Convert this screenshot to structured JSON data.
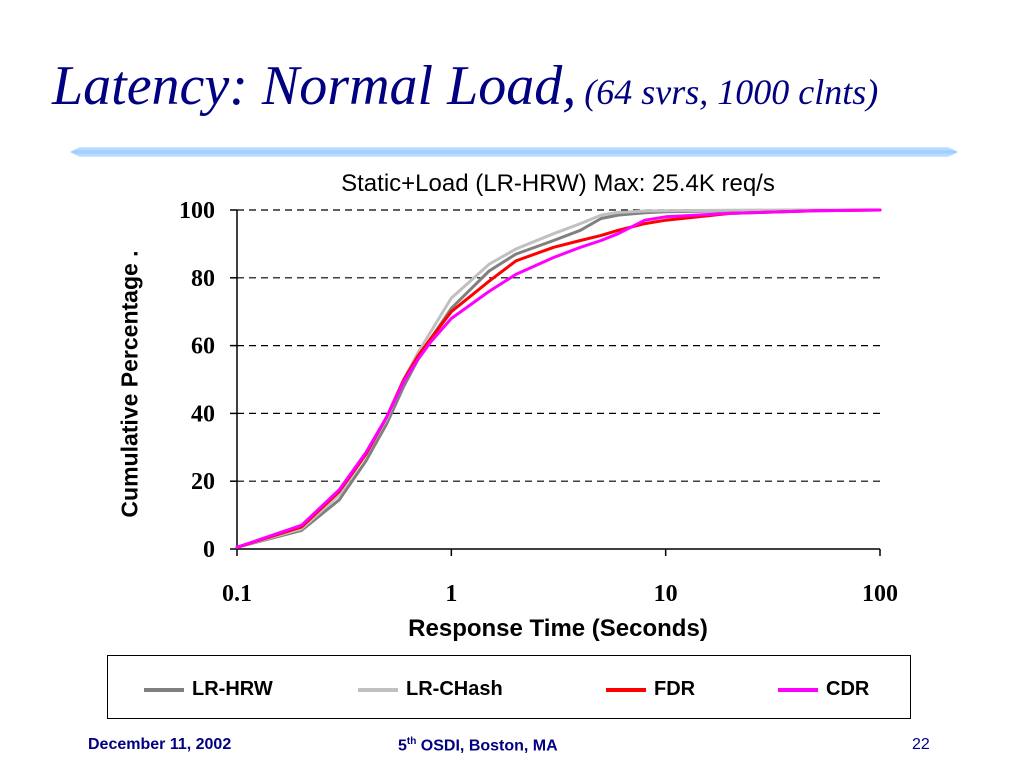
{
  "slide": {
    "title_main": "Latency: Normal Load,",
    "title_sub": "(64 svrs, 1000 clnts)"
  },
  "footer": {
    "date": "December 11, 2002",
    "conf_prefix": "5",
    "conf_sup": "th",
    "conf_rest": " OSDI, Boston, MA",
    "page": "22"
  },
  "colors": {
    "title": "#000080",
    "rule": "#99ccff"
  },
  "chart_data": {
    "type": "line",
    "title": "Static+Load (LR-HRW) Max: 25.4K req/s",
    "xlabel": "Response Time (Seconds)",
    "ylabel": "Cumulative Percentage .",
    "x_scale": "log",
    "xlim": [
      0.1,
      100
    ],
    "ylim": [
      0,
      100
    ],
    "x_ticks": [
      0.1,
      1,
      10,
      100
    ],
    "x_tick_labels": [
      "0.1",
      "1",
      "10",
      "100"
    ],
    "y_ticks": [
      0,
      20,
      40,
      60,
      80,
      100
    ],
    "y_tick_labels": [
      "0",
      "20",
      "40",
      "60",
      "80",
      "100"
    ],
    "grid": "horizontal-dashed",
    "legend_position": "bottom",
    "series": [
      {
        "name": "LR-HRW",
        "color": "#808080",
        "x": [
          0.1,
          0.2,
          0.3,
          0.4,
          0.5,
          0.6,
          0.7,
          0.8,
          1,
          1.5,
          2,
          3,
          4,
          5,
          6,
          8,
          10,
          20,
          50,
          100
        ],
        "y": [
          0.5,
          5.5,
          14.5,
          26,
          37,
          48,
          56,
          62,
          71,
          82,
          87,
          91,
          94,
          97.5,
          98.5,
          99.2,
          99.5,
          99.8,
          100,
          100
        ]
      },
      {
        "name": "LR-CHash",
        "color": "#c0c0c0",
        "x": [
          0.1,
          0.2,
          0.3,
          0.4,
          0.5,
          0.6,
          0.7,
          0.8,
          1,
          1.5,
          2,
          3,
          4,
          5,
          6,
          8,
          10,
          20,
          50,
          100
        ],
        "y": [
          0.5,
          6,
          16,
          28,
          38.5,
          50,
          58,
          64,
          74,
          84,
          88.5,
          93,
          96,
          98.5,
          99.3,
          99.7,
          99.8,
          99.9,
          100,
          100
        ]
      },
      {
        "name": "FDR",
        "color": "#ff0000",
        "x": [
          0.1,
          0.2,
          0.3,
          0.4,
          0.5,
          0.6,
          0.7,
          0.8,
          1,
          1.5,
          2,
          3,
          4,
          5,
          6,
          8,
          10,
          20,
          50,
          100
        ],
        "y": [
          0.5,
          6.5,
          17,
          28,
          39,
          50,
          57,
          62,
          70,
          79,
          85,
          89,
          91,
          92.5,
          94,
          96,
          97,
          99,
          99.8,
          100
        ]
      },
      {
        "name": "CDR",
        "color": "#ff00ff",
        "x": [
          0.1,
          0.2,
          0.3,
          0.4,
          0.5,
          0.6,
          0.7,
          0.8,
          1,
          1.5,
          2,
          3,
          4,
          5,
          6,
          8,
          10,
          20,
          50,
          100
        ],
        "y": [
          0.5,
          7,
          17.5,
          28.5,
          39,
          49.5,
          56,
          61,
          68,
          76,
          81,
          86,
          89,
          91,
          93,
          97,
          98,
          99,
          99.8,
          100
        ]
      }
    ]
  }
}
